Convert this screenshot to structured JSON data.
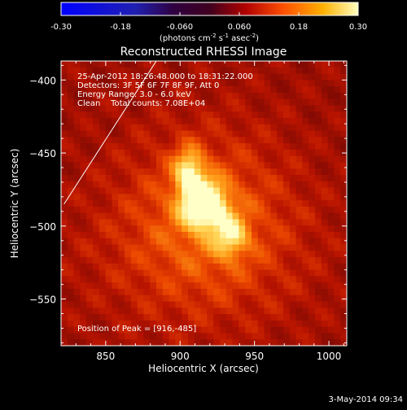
{
  "chart_data": {
    "type": "heatmap",
    "title": "Reconstructed RHESSI Image",
    "xlabel": "Heliocentric X (arcsec)",
    "ylabel": "Heliocentric Y (arcsec)",
    "xlim": [
      820,
      1012
    ],
    "ylim": [
      -582,
      -387
    ],
    "x_ticks": [
      850,
      900,
      950,
      1000
    ],
    "y_ticks": [
      -400,
      -450,
      -500,
      -550
    ],
    "colorbar": {
      "range": [
        -0.3,
        0.3
      ],
      "ticks": [
        "-0.30",
        "-0.18",
        "-0.060",
        "0.060",
        "0.18",
        "0.30"
      ],
      "tick_values": [
        -0.3,
        -0.18,
        -0.06,
        0.06,
        0.18,
        0.3
      ],
      "unit_label": "(photons cm",
      "unit_sup1": "-2",
      "unit_mid": " s",
      "unit_sup2": "-1",
      "unit_end": " asec",
      "unit_sup3": "-2",
      "unit_close": ")"
    },
    "annotations": [
      "25-Apr-2012 18:26:48.000 to 18:31:22.000",
      "Detectors: 3F 5F 6F 7F 8F 9F, Att 0",
      "Energy Range: 3.0 - 6.0 keV",
      "Clean    Total counts: 7.08E+04"
    ],
    "peak_label": "Position of Peak = [916,-485]",
    "peak": [
      916,
      -485
    ],
    "limb_line": [
      [
        822,
        -485
      ],
      [
        884,
        -387
      ]
    ],
    "sources": [
      {
        "x": 916,
        "y": -485,
        "amp": 0.3,
        "sx": 10,
        "sy": 11
      },
      {
        "x": 906,
        "y": -462,
        "amp": 0.19,
        "sx": 7,
        "sy": 11
      },
      {
        "x": 934,
        "y": -507,
        "amp": 0.15,
        "sx": 8,
        "sy": 10
      },
      {
        "x": 918,
        "y": -490,
        "amp": 0.1,
        "sx": 38,
        "sy": 42
      },
      {
        "x": 910,
        "y": -520,
        "amp": 0.05,
        "sx": 60,
        "sy": 40
      }
    ]
  },
  "footer": {
    "date": "3-May-2014 09:34"
  }
}
